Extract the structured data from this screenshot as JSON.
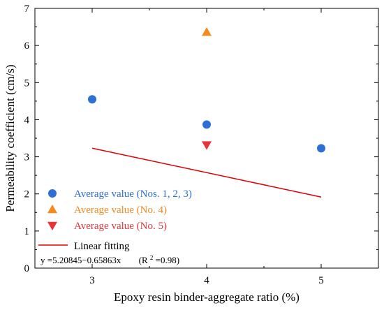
{
  "chart_data": {
    "type": "scatter",
    "xlabel": "Epoxy resin binder-aggregate ratio (%)",
    "ylabel": "Permeability coefficient (cm/s)",
    "xlim": [
      2.5,
      5.5
    ],
    "ylim": [
      0,
      7
    ],
    "xticks": [
      "3",
      "4",
      "5"
    ],
    "yticks": [
      "0",
      "1",
      "2",
      "3",
      "4",
      "5",
      "6",
      "7"
    ],
    "grid": false,
    "legend_position": "bottom-left",
    "series": [
      {
        "name": "Average value (Nos. 1, 2, 3)",
        "marker": "circle",
        "color": "#2e6fd6",
        "points": [
          {
            "x": 3,
            "y": 4.55
          },
          {
            "x": 4,
            "y": 3.87
          },
          {
            "x": 5,
            "y": 3.23
          }
        ]
      },
      {
        "name": "Average value (No. 4)",
        "marker": "triangle-up",
        "color": "#f58a1f",
        "points": [
          {
            "x": 4,
            "y": 6.36
          }
        ]
      },
      {
        "name": "Average value (No. 5)",
        "marker": "triangle-down",
        "color": "#e8333b",
        "points": [
          {
            "x": 4,
            "y": 3.32
          }
        ]
      }
    ],
    "fit": {
      "name": "Linear fitting",
      "color": "#e00000",
      "intercept": 5.20845,
      "slope": -0.65863,
      "x_range": [
        3,
        5
      ],
      "equation_label": "y =5.20845−0.65863x",
      "r2_label_prefix": "(R",
      "r2_label_sup": "2",
      "r2_label_suffix": "=0.98)"
    }
  }
}
